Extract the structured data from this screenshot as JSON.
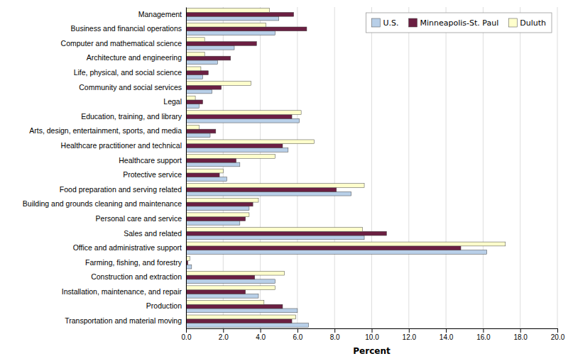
{
  "chart_data": {
    "type": "bar",
    "orientation": "horizontal",
    "categories": [
      "Management",
      "Business and financial operations",
      "Computer and mathematical science",
      "Architecture and engineering",
      "Life, physical, and social science",
      "Community and social services",
      "Legal",
      "Education, training, and library",
      "Arts, design, entertainment, sports, and media",
      "Healthcare practitioner and technical",
      "Healthcare support",
      "Protective service",
      "Food preparation and serving related",
      "Building and grounds cleaning and maintenance",
      "Personal care and service",
      "Sales and related",
      "Office and administrative support",
      "Farming, fishing, and forestry",
      "Construction and extraction",
      "Installation, maintenance, and repair",
      "Production",
      "Transportation and material moving"
    ],
    "series": [
      {
        "name": "U.S.",
        "color": "#b8cfe8",
        "values": [
          5.0,
          4.8,
          2.6,
          1.7,
          0.9,
          1.4,
          0.7,
          6.1,
          1.3,
          5.5,
          2.9,
          2.2,
          8.9,
          3.4,
          2.9,
          9.6,
          16.2,
          0.3,
          4.8,
          3.9,
          6.0,
          6.6
        ]
      },
      {
        "name": "Minneapolis-St. Paul",
        "color": "#6b1f42",
        "values": [
          5.8,
          6.5,
          3.8,
          2.4,
          1.2,
          1.9,
          0.9,
          5.7,
          1.6,
          5.2,
          2.7,
          1.8,
          8.1,
          3.6,
          3.2,
          10.8,
          14.8,
          0.1,
          3.7,
          3.2,
          5.2,
          5.7
        ]
      },
      {
        "name": "Duluth",
        "color": "#ffffcc",
        "values": [
          4.5,
          4.3,
          1.0,
          1.0,
          0.8,
          3.5,
          0.5,
          6.2,
          0.7,
          6.9,
          4.8,
          2.0,
          9.6,
          3.9,
          3.4,
          9.5,
          17.2,
          0.2,
          5.3,
          4.8,
          4.2,
          5.9
        ]
      }
    ],
    "xlabel": "Percent",
    "xlim": [
      0,
      20.0
    ],
    "xticks": [
      {
        "value": 0.0,
        "label": "0.0"
      },
      {
        "value": 2.0,
        "label": "2.0"
      },
      {
        "value": 4.0,
        "label": "4.0"
      },
      {
        "value": 6.0,
        "label": "6.0"
      },
      {
        "value": 8.0,
        "label": "8.0"
      },
      {
        "value": 10.0,
        "label": "10.0"
      },
      {
        "value": 12.0,
        "label": "12.0"
      },
      {
        "value": 14.0,
        "label": "14.0"
      },
      {
        "value": 16.0,
        "label": "16.0"
      },
      {
        "value": 18.0,
        "label": "18.0"
      },
      {
        "value": 20.0,
        "label": "20.0"
      }
    ],
    "grid": true,
    "legend": "upper right"
  }
}
